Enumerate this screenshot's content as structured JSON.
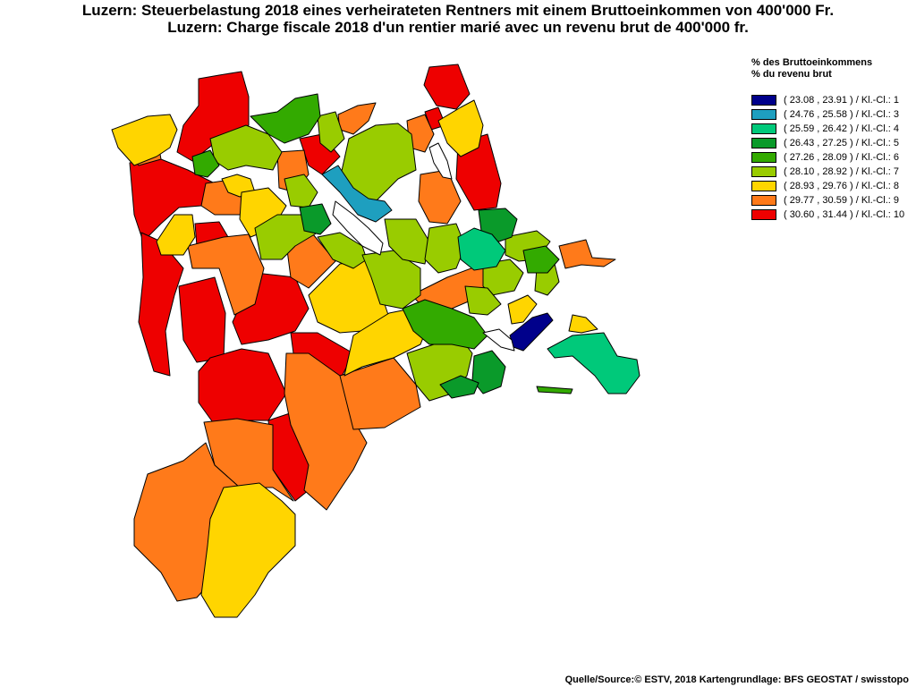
{
  "title_de": "Luzern: Steuerbelastung 2018 eines verheirateten Rentners mit einem Bruttoeinkommen von 400'000 Fr.",
  "title_fr": "Luzern: Charge fiscale 2018 d'un rentier marié avec un revenu brut de 400'000 fr.",
  "legend": {
    "heading_de": "% des Bruttoeinkommens",
    "heading_fr": "% du revenu brut",
    "classes": [
      {
        "label": "( 23.08 , 23.91 ) / Kl.-Cl.: 1",
        "color": "#00008b"
      },
      {
        "label": "( 24.76 , 25.58 ) / Kl.-Cl.: 3",
        "color": "#1e9fbf"
      },
      {
        "label": "( 25.59 , 26.42 ) / Kl.-Cl.: 4",
        "color": "#00c97a"
      },
      {
        "label": "( 26.43 , 27.25 ) / Kl.-Cl.: 5",
        "color": "#0a9a2a"
      },
      {
        "label": "( 27.26 , 28.09 ) / Kl.-Cl.: 6",
        "color": "#33aa00"
      },
      {
        "label": "( 28.10 , 28.92 ) / Kl.-Cl.: 7",
        "color": "#99cc00"
      },
      {
        "label": "( 28.93 , 29.76 ) / Kl.-Cl.: 8",
        "color": "#ffd500"
      },
      {
        "label": "( 29.77 , 30.59 ) / Kl.-Cl.: 9",
        "color": "#ff7a1a"
      },
      {
        "label": "( 30.60 , 31.44 ) / Kl.-Cl.: 10",
        "color": "#ee0000"
      }
    ]
  },
  "source": "Quelle/Source:© ESTV, 2018 Kartengrundlage: BFS GEOSTAT / swisstopo"
}
